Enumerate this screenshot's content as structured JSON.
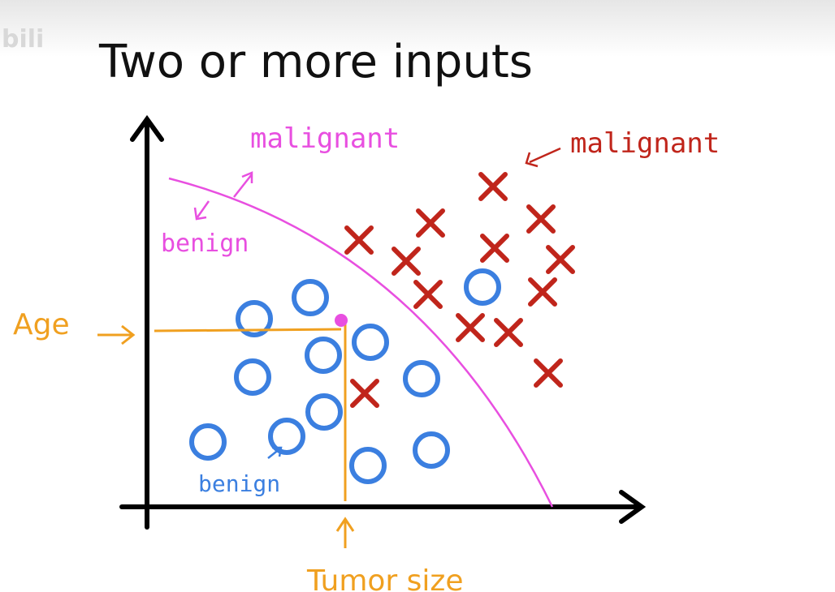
{
  "slide": {
    "watermark": "bili",
    "title": "Two or more inputs",
    "labels": {
      "malignant_boundary": "malignant",
      "malignant_points": "malignant",
      "benign_boundary": "benign",
      "benign_points": "benign",
      "y_axis": "Age",
      "x_axis": "Tumor size"
    }
  }
}
